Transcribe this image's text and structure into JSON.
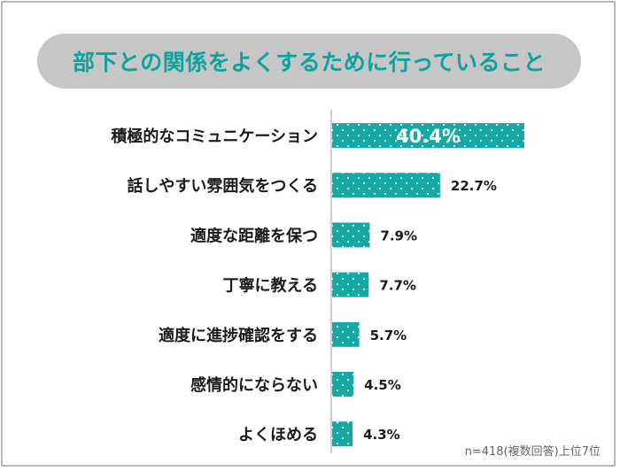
{
  "chart_data": {
    "type": "bar",
    "orientation": "horizontal",
    "title": "部下との関係をよくするために行っていること",
    "categories": [
      "積極的なコミュニケーション",
      "話しやすい雰囲気をつくる",
      "適度な距離を保つ",
      "丁寧に教える",
      "適度に進捗確認をする",
      "感情的にならない",
      "よくほめる"
    ],
    "values": [
      40.4,
      22.7,
      7.9,
      7.7,
      5.7,
      4.5,
      4.3
    ],
    "value_labels": [
      "40.4%",
      "22.7%",
      "7.9%",
      "7.7%",
      "5.7%",
      "4.5%",
      "4.3%"
    ],
    "unit": "%",
    "xlim": [
      0,
      40.4
    ],
    "grid": false,
    "note": "n=418(複数回答)上位7位",
    "colors": {
      "bar": "#14a9a4",
      "dots": "#ffffff",
      "title_bg": "#c6c6c6",
      "title_text": "#0aa3a0"
    }
  }
}
